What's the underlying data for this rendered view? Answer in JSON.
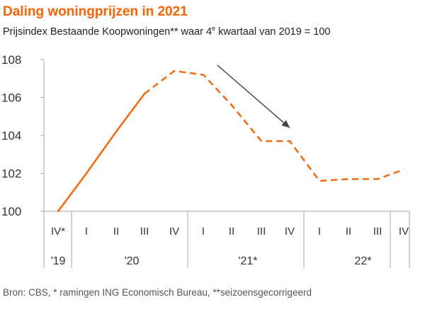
{
  "chart_data": {
    "type": "line",
    "title": "Daling woningprijzen in 2021",
    "subtitle": {
      "before": "Prijsindex Bestaande Koopwoningen** waar 4",
      "sup": "e",
      "after": " kwartaal  van 2019 = 100"
    },
    "footnote": "Bron: CBS, * ramingen ING Economisch Bureau, **seizoensgecorrigeerd",
    "xlabel": "",
    "ylabel": "",
    "categories": [
      "IV*",
      "I",
      "II",
      "III",
      "IV",
      "I",
      "II",
      "III",
      "IV",
      "I",
      "II",
      "III",
      "IV"
    ],
    "year_labels": [
      {
        "label": "'19",
        "from": 0,
        "to": 0
      },
      {
        "label": "'20",
        "from": 1,
        "to": 4
      },
      {
        "label": "'21*",
        "from": 5,
        "to": 8
      },
      {
        "label": "22*",
        "from": 9,
        "to": 12
      }
    ],
    "series": [
      {
        "values": [
          100.0,
          102.0,
          104.2,
          106.2,
          107.4,
          107.2,
          105.6,
          103.7,
          103.7,
          101.6,
          101.7,
          101.7,
          102.2
        ],
        "solid_until_index": 3
      }
    ],
    "ylim": [
      100,
      108
    ],
    "yticks": [
      100,
      102,
      104,
      106,
      108
    ],
    "grid": false,
    "legend": "none",
    "annotations": [
      {
        "type": "arrow",
        "from_x_index": 5.5,
        "from_y": 107.7,
        "to_x_index": 8.0,
        "to_y": 104.4
      }
    ],
    "colors": {
      "title": "#ff6200",
      "line": "#ff6200",
      "axis": "#aaaaaa",
      "arrow": "#444444",
      "text": "#333333"
    }
  }
}
